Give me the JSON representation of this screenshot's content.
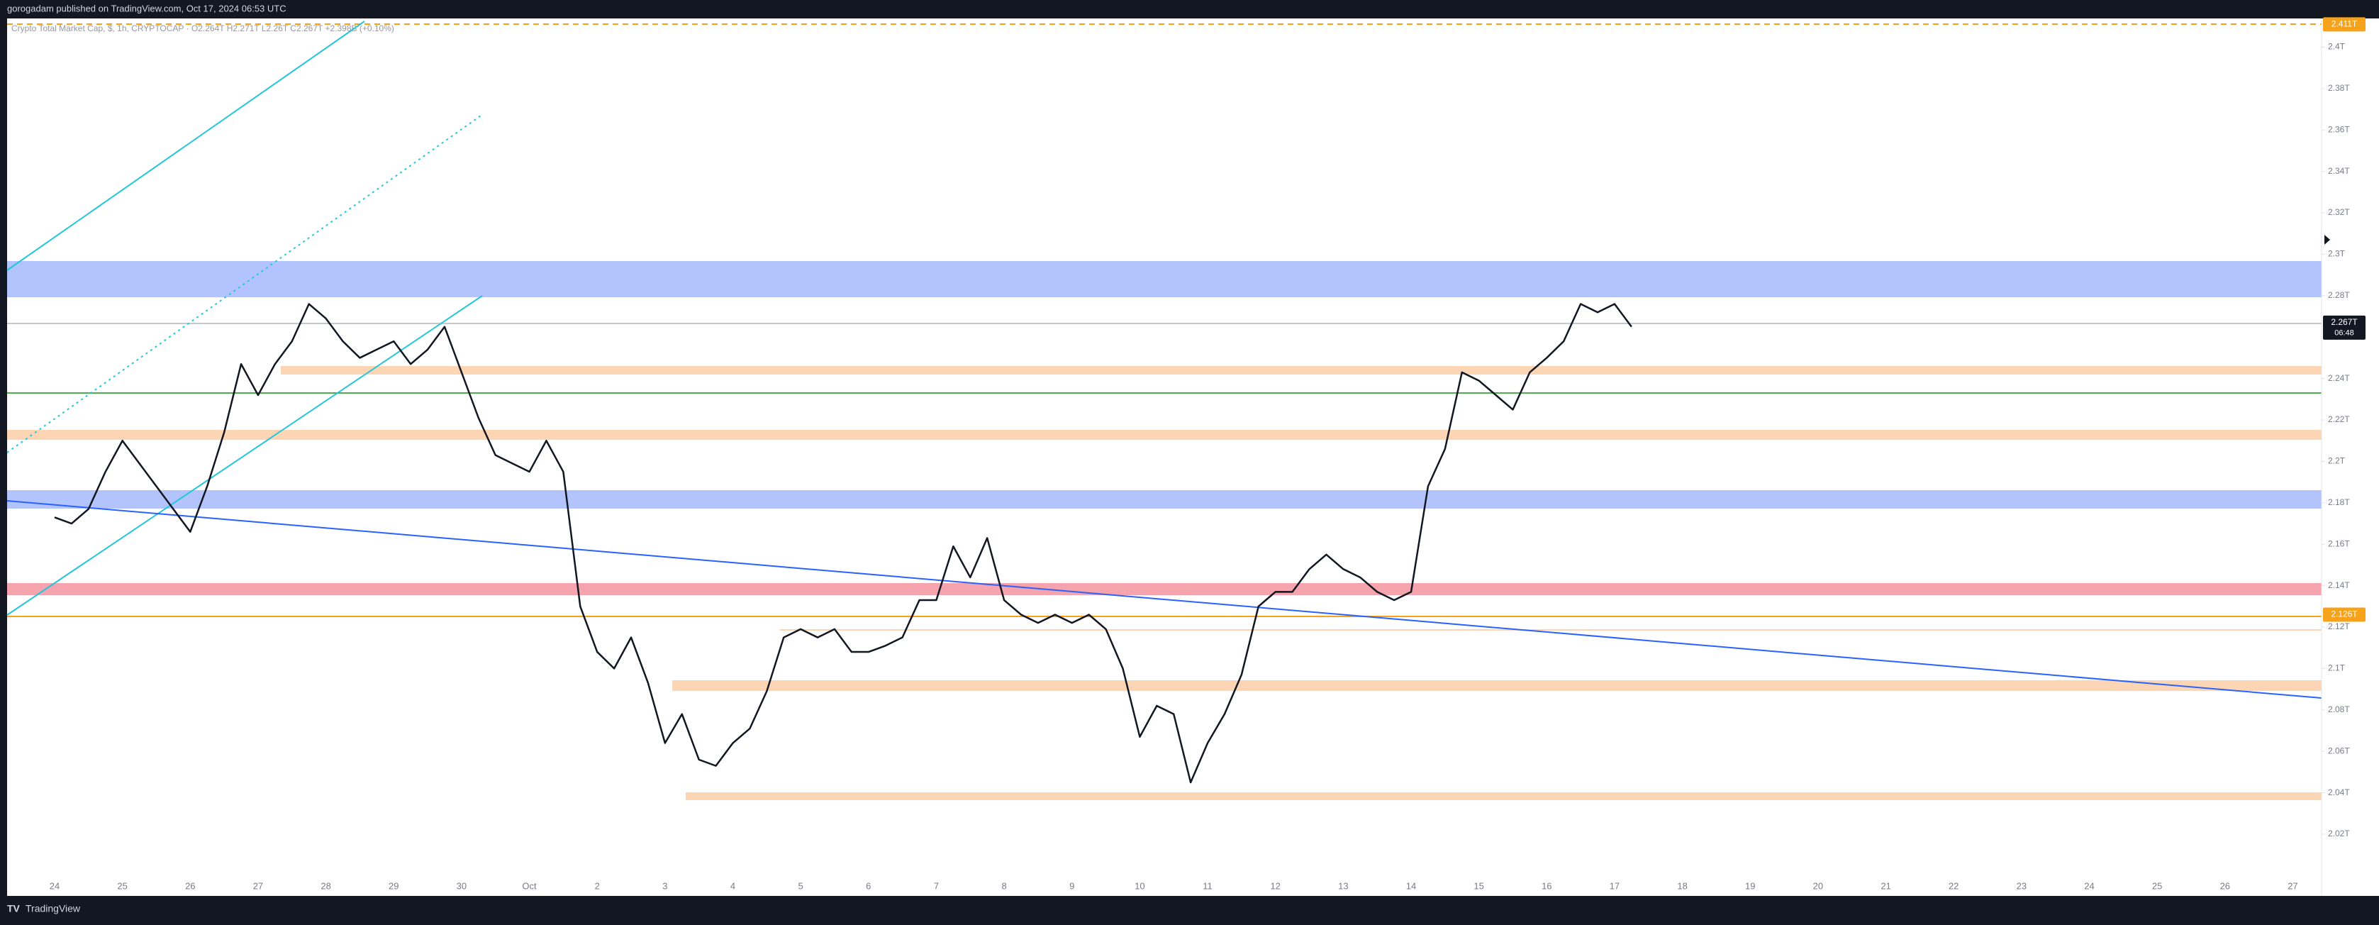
{
  "header": {
    "title": "gorogadam published on TradingView.com, Oct 17, 2024 06:53 UTC",
    "legend": "Crypto Total Market Cap, $, 1h, CRYPTOCAP · O2.264T H2.271T L2.26T C2.267T +2.398B (+0.10%)"
  },
  "footer": {
    "brand": "TradingView"
  },
  "chart_data": {
    "type": "line",
    "categories": [
      "24",
      null,
      null,
      null,
      "25",
      null,
      null,
      null,
      "26",
      null,
      null,
      null,
      "27",
      null,
      null,
      null,
      "28",
      null,
      null,
      null,
      "29",
      null,
      null,
      null,
      "30",
      null,
      null,
      null,
      "Oct",
      null,
      null,
      null,
      "2",
      null,
      null,
      null,
      "3",
      null,
      null,
      null,
      "4",
      null,
      null,
      null,
      "5",
      null,
      null,
      null,
      "6",
      null,
      null,
      null,
      "7",
      null,
      null,
      null,
      "8",
      null,
      null,
      null,
      "9",
      null,
      null,
      null,
      "10",
      null,
      null,
      null,
      "11",
      null,
      null,
      null,
      "12",
      null,
      null,
      null,
      "13",
      null,
      null,
      null,
      "14",
      null,
      null,
      null,
      "15",
      null,
      null,
      null,
      "16",
      null,
      null,
      null,
      "17",
      null,
      null,
      null,
      "18",
      null,
      null,
      null,
      "19",
      null,
      null,
      null,
      "20",
      null,
      null,
      null,
      "21",
      null,
      null,
      null,
      "22",
      null,
      null,
      null,
      "23",
      null,
      null,
      null,
      "24",
      null,
      null,
      null,
      "25",
      null,
      null,
      null,
      "26",
      null,
      null,
      null,
      "27"
    ],
    "series": [
      {
        "name": "Crypto Total Market Cap",
        "color": "#131722",
        "values": [
          2.173,
          2.17,
          2.177,
          2.195,
          2.21,
          2.199,
          2.188,
          2.177,
          2.166,
          2.188,
          2.214,
          2.247,
          2.232,
          2.247,
          2.258,
          2.276,
          2.269,
          2.258,
          2.25,
          2.254,
          2.258,
          2.247,
          2.254,
          2.265,
          2.243,
          2.221,
          2.203,
          2.199,
          2.195,
          2.21,
          2.195,
          2.13,
          2.108,
          2.1,
          2.115,
          2.093,
          2.064,
          2.078,
          2.056,
          2.053,
          2.064,
          2.071,
          2.089,
          2.115,
          2.119,
          2.115,
          2.119,
          2.108,
          2.108,
          2.111,
          2.115,
          2.133,
          2.133,
          2.159,
          2.144,
          2.163,
          2.133,
          2.126,
          2.122,
          2.126,
          2.122,
          2.126,
          2.119,
          2.1,
          2.067,
          2.082,
          2.078,
          2.045,
          2.064,
          2.078,
          2.097,
          2.13,
          2.137,
          2.137,
          2.148,
          2.155,
          2.148,
          2.144,
          2.137,
          2.133,
          2.137,
          2.188,
          2.206,
          2.243,
          2.239,
          2.232,
          2.225,
          2.243,
          2.25,
          2.258,
          2.276,
          2.272,
          2.276,
          2.265,
          null,
          null,
          null,
          null,
          null,
          null,
          null,
          null,
          null,
          null,
          null,
          null,
          null,
          null,
          null,
          null,
          null,
          null,
          null,
          null,
          null,
          null,
          null,
          null,
          null,
          null,
          null,
          null,
          null,
          null,
          null,
          null,
          null,
          null,
          null,
          null,
          null,
          null,
          null
        ]
      }
    ],
    "ylim": [
      2.0015,
      2.4125
    ],
    "yticks": [
      {
        "value": 2.4,
        "label": "2.4T"
      },
      {
        "value": 2.38,
        "label": "2.38T"
      },
      {
        "value": 2.36,
        "label": "2.36T"
      },
      {
        "value": 2.34,
        "label": "2.34T"
      },
      {
        "value": 2.32,
        "label": "2.32T"
      },
      {
        "value": 2.3,
        "label": "2.3T"
      },
      {
        "value": 2.28,
        "label": "2.28T"
      },
      {
        "value": 2.24,
        "label": "2.24T"
      },
      {
        "value": 2.22,
        "label": "2.22T"
      },
      {
        "value": 2.2,
        "label": "2.2T"
      },
      {
        "value": 2.18,
        "label": "2.18T"
      },
      {
        "value": 2.16,
        "label": "2.16T"
      },
      {
        "value": 2.14,
        "label": "2.14T"
      },
      {
        "value": 2.12,
        "label": "2.12T"
      },
      {
        "value": 2.1,
        "label": "2.1T"
      },
      {
        "value": 2.08,
        "label": "2.08T"
      },
      {
        "value": 2.06,
        "label": "2.06T"
      },
      {
        "value": 2.04,
        "label": "2.04T"
      },
      {
        "value": 2.02,
        "label": "2.02T"
      }
    ],
    "price_labels": [
      {
        "value": 2.411,
        "label": "2.411T",
        "color": "#f7a21b"
      },
      {
        "value": 2.267,
        "label": "2.267T",
        "sub": "06:48",
        "color": "#131722"
      },
      {
        "value": 2.126,
        "label": "2.126T",
        "color": "#f7a21b"
      }
    ]
  }
}
